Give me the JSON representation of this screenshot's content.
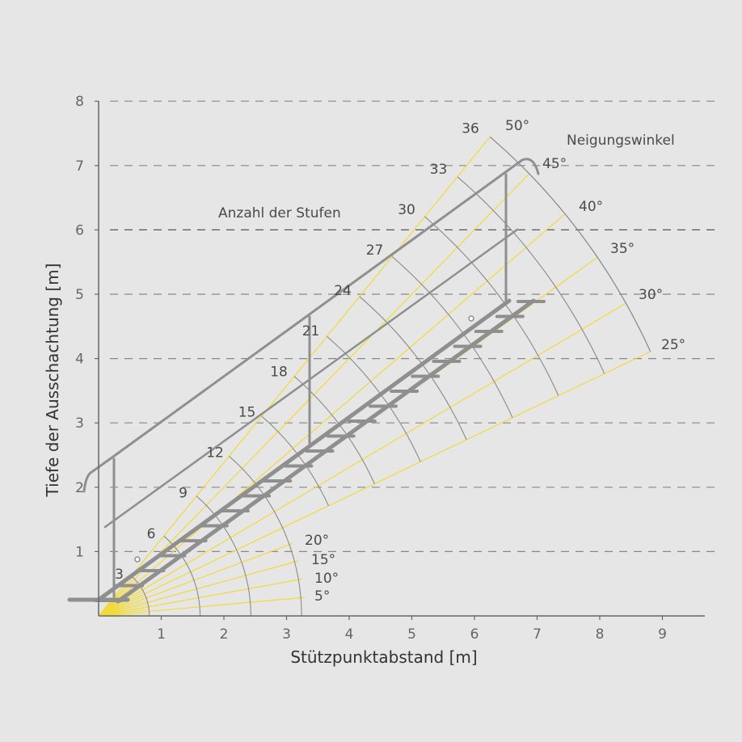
{
  "chart_data": {
    "type": "line",
    "title": "",
    "xlabel": "Stützpunktabstand [m]",
    "ylabel": "Tiefe der Ausschachtung [m]",
    "xlim": [
      0,
      9.6
    ],
    "ylim": [
      0,
      8
    ],
    "x_ticks": [
      "1",
      "2",
      "3",
      "4",
      "5",
      "6",
      "7",
      "8",
      "9"
    ],
    "y_ticks": [
      "1",
      "2",
      "3",
      "4",
      "5",
      "6",
      "7",
      "8"
    ],
    "grid": "horizontal dashed",
    "angle_title": "Neigungswinkel",
    "angles": [
      {
        "deg": 5,
        "label": "5°"
      },
      {
        "deg": 10,
        "label": "10°"
      },
      {
        "deg": 15,
        "label": "15°"
      },
      {
        "deg": 20,
        "label": "20°"
      },
      {
        "deg": 25,
        "label": "25°"
      },
      {
        "deg": 30,
        "label": "30°"
      },
      {
        "deg": 35,
        "label": "35°"
      },
      {
        "deg": 40,
        "label": "40°"
      },
      {
        "deg": 45,
        "label": "45°"
      },
      {
        "deg": 50,
        "label": "50°"
      }
    ],
    "steps_title": "Anzahl der  Stufen",
    "steps": [
      {
        "n": "3",
        "r": 0.81
      },
      {
        "n": "6",
        "r": 1.62
      },
      {
        "n": "9",
        "r": 2.43
      },
      {
        "n": "12",
        "r": 3.24
      },
      {
        "n": "15",
        "r": 4.05
      },
      {
        "n": "18",
        "r": 4.86
      },
      {
        "n": "21",
        "r": 5.67
      },
      {
        "n": "24",
        "r": 6.48
      },
      {
        "n": "27",
        "r": 7.29
      },
      {
        "n": "30",
        "r": 8.1
      },
      {
        "n": "33",
        "r": 8.91
      },
      {
        "n": "36",
        "r": 9.72
      }
    ],
    "colors": {
      "ray": "#f2da3a",
      "arc": "#8a8a8a",
      "stair": "#8f8f8f",
      "grid": "#888888"
    }
  }
}
